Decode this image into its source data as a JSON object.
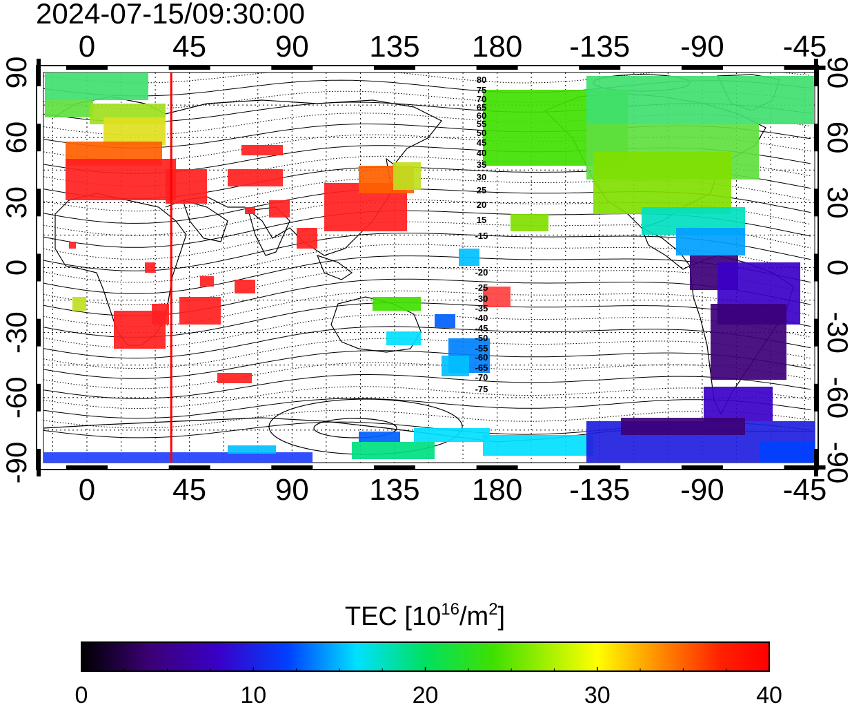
{
  "timestamp": "2024-07-15/09:30:00",
  "map": {
    "top_ticks": [
      "0",
      "45",
      "90",
      "135",
      "180",
      "-135",
      "-90",
      "-45"
    ],
    "bottom_ticks": [
      "0",
      "45",
      "90",
      "135",
      "180",
      "-135",
      "-90",
      "-45"
    ],
    "left_ticks": [
      "90",
      "60",
      "30",
      "0",
      "-30",
      "-60",
      "-90"
    ],
    "right_ticks": [
      "90",
      "60",
      "30",
      "0",
      "-30",
      "-60",
      "-90"
    ],
    "marker_longitude": 37,
    "marker_color": "#ff0000",
    "contour_labels": [
      "80",
      "75",
      "70",
      "65",
      "60",
      "55",
      "50",
      "45",
      "40",
      "35",
      "30",
      "25",
      "20",
      "15",
      "-15",
      "-20",
      "-25",
      "-30",
      "-35",
      "-40",
      "-45",
      "-50",
      "-55",
      "-60",
      "-65",
      "-70",
      "-75"
    ]
  },
  "colorbar": {
    "title_prefix": "TEC  [10",
    "title_sup1": "16",
    "title_mid": "/m",
    "title_sup2": "2",
    "title_suffix": "]",
    "tick_labels": [
      "0",
      "10",
      "20",
      "30",
      "40"
    ],
    "min": 0,
    "max": 40,
    "colors": [
      "#000000",
      "#3c0077",
      "#3a00c8",
      "#0040ff",
      "#00e0ff",
      "#00e060",
      "#40e000",
      "#ffff00",
      "#ff8000",
      "#ff2000",
      "#ff0000"
    ]
  }
}
